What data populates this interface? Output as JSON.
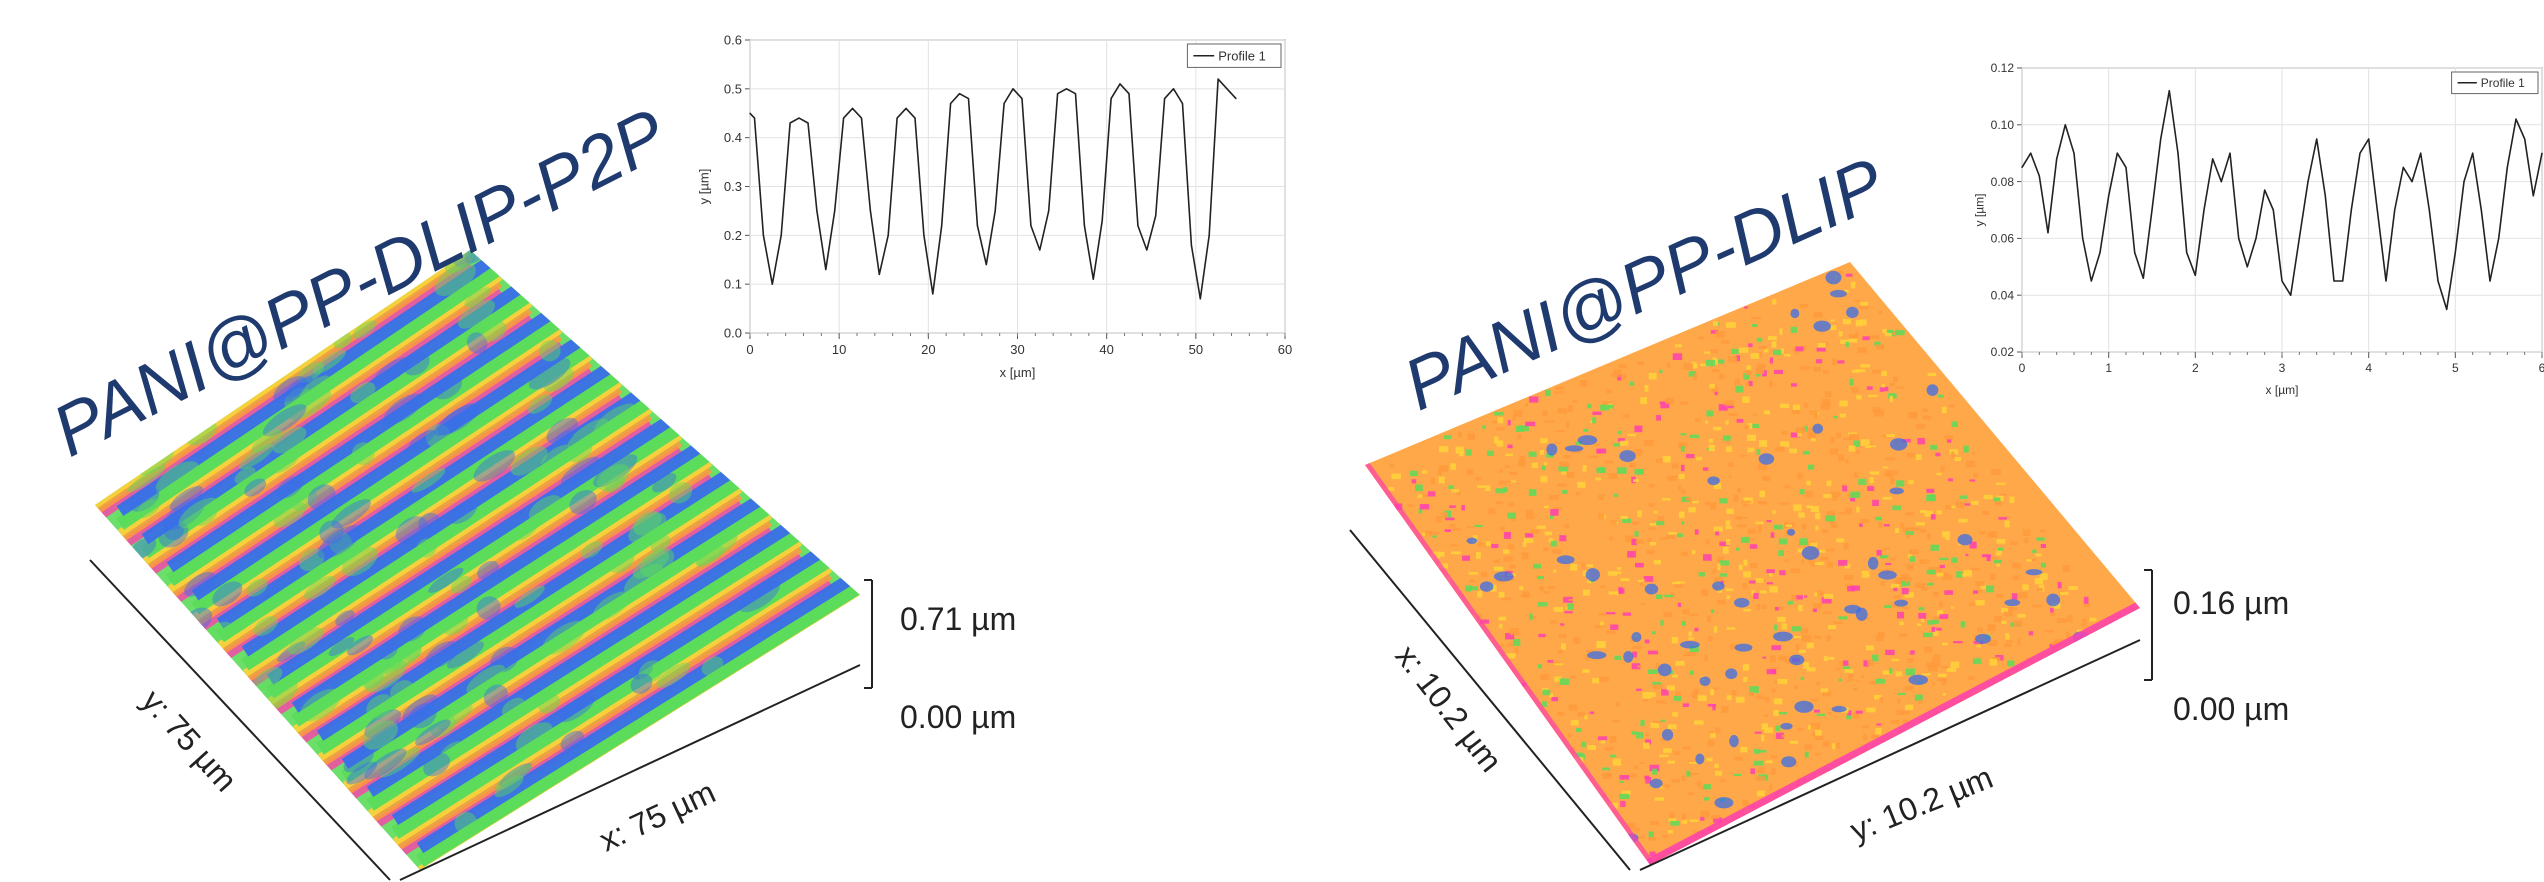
{
  "colors": {
    "sample_label": "#1f3a6e",
    "low": "#ff3fb0",
    "mid_low": "#ff9a3c",
    "mid": "#ffd23a",
    "mid_high": "#5bdc5a",
    "high": "#3a6ee8"
  },
  "left": {
    "sample_label": "PANI@PP-DLIP-P2P",
    "scale_max": "0.71 µm",
    "scale_min": "0.00 µm",
    "axis_x": "x: 75 µm",
    "axis_y": "y: 75 µm"
  },
  "right": {
    "sample_label": "PANI@PP-DLIP",
    "scale_max": "0.16 µm",
    "scale_min": "0.00 µm",
    "axis_x": "x: 10.2 µm",
    "axis_y": "y: 10.2 µm"
  },
  "chart_data": [
    {
      "type": "line",
      "title": "",
      "xlabel": "x [µm]",
      "ylabel": "y [µm]",
      "xlim": [
        0,
        60
      ],
      "ylim": [
        0,
        0.6
      ],
      "xticks": [
        "0",
        "10",
        "20",
        "30",
        "40",
        "50",
        "60"
      ],
      "yticks": [
        "0.0",
        "0.1",
        "0.2",
        "0.3",
        "0.4",
        "0.5",
        "0.6"
      ],
      "grid": true,
      "legend": "top-right",
      "series": [
        {
          "name": "Profile 1",
          "x": [
            0,
            0.5,
            1.5,
            2.5,
            3.5,
            4.5,
            5.5,
            6.5,
            7.5,
            8.5,
            9.5,
            10.5,
            11.5,
            12.5,
            13.5,
            14.5,
            15.5,
            16.5,
            17.5,
            18.5,
            19.5,
            20.5,
            21.5,
            22.5,
            23.5,
            24.5,
            25.5,
            26.5,
            27.5,
            28.5,
            29.5,
            30.5,
            31.5,
            32.5,
            33.5,
            34.5,
            35.5,
            36.5,
            37.5,
            38.5,
            39.5,
            40.5,
            41.5,
            42.5,
            43.5,
            44.5,
            45.5,
            46.5,
            47.5,
            48.5,
            49.5,
            50.5,
            51.5,
            52.5,
            53.5,
            54.5
          ],
          "y": [
            0.45,
            0.44,
            0.2,
            0.1,
            0.2,
            0.43,
            0.44,
            0.43,
            0.25,
            0.13,
            0.25,
            0.44,
            0.46,
            0.44,
            0.25,
            0.12,
            0.2,
            0.44,
            0.46,
            0.44,
            0.2,
            0.08,
            0.22,
            0.47,
            0.49,
            0.48,
            0.22,
            0.14,
            0.25,
            0.47,
            0.5,
            0.48,
            0.22,
            0.17,
            0.25,
            0.49,
            0.5,
            0.49,
            0.22,
            0.11,
            0.23,
            0.48,
            0.51,
            0.49,
            0.22,
            0.17,
            0.24,
            0.48,
            0.5,
            0.47,
            0.18,
            0.07,
            0.2,
            0.52,
            0.5,
            0.48
          ]
        }
      ]
    },
    {
      "type": "line",
      "title": "",
      "xlabel": "x [µm]",
      "ylabel": "y [µm]",
      "xlim": [
        0,
        6
      ],
      "ylim": [
        0.02,
        0.12
      ],
      "xticks": [
        "0",
        "1",
        "2",
        "3",
        "4",
        "5",
        "6"
      ],
      "yticks": [
        "0.02",
        "0.04",
        "0.06",
        "0.08",
        "0.10",
        "0.12"
      ],
      "grid": true,
      "legend": "top-right",
      "series": [
        {
          "name": "Profile 1",
          "x": [
            0,
            0.1,
            0.2,
            0.3,
            0.4,
            0.5,
            0.6,
            0.7,
            0.8,
            0.9,
            1.0,
            1.1,
            1.2,
            1.3,
            1.4,
            1.5,
            1.6,
            1.7,
            1.8,
            1.9,
            2.0,
            2.1,
            2.2,
            2.3,
            2.4,
            2.5,
            2.6,
            2.7,
            2.8,
            2.9,
            3.0,
            3.1,
            3.2,
            3.3,
            3.4,
            3.5,
            3.6,
            3.7,
            3.8,
            3.9,
            4.0,
            4.1,
            4.2,
            4.3,
            4.4,
            4.5,
            4.6,
            4.7,
            4.8,
            4.9,
            5.0,
            5.1,
            5.2,
            5.3,
            5.4,
            5.5,
            5.6,
            5.7,
            5.8,
            5.9,
            6.0
          ],
          "y": [
            0.085,
            0.09,
            0.082,
            0.062,
            0.088,
            0.1,
            0.09,
            0.06,
            0.045,
            0.055,
            0.075,
            0.09,
            0.085,
            0.055,
            0.046,
            0.07,
            0.095,
            0.112,
            0.09,
            0.055,
            0.047,
            0.07,
            0.088,
            0.08,
            0.09,
            0.06,
            0.05,
            0.06,
            0.077,
            0.07,
            0.045,
            0.04,
            0.06,
            0.08,
            0.095,
            0.075,
            0.045,
            0.045,
            0.07,
            0.09,
            0.095,
            0.07,
            0.045,
            0.07,
            0.085,
            0.08,
            0.09,
            0.07,
            0.045,
            0.035,
            0.055,
            0.08,
            0.09,
            0.07,
            0.045,
            0.06,
            0.085,
            0.102,
            0.095,
            0.075,
            0.09
          ]
        }
      ]
    }
  ]
}
